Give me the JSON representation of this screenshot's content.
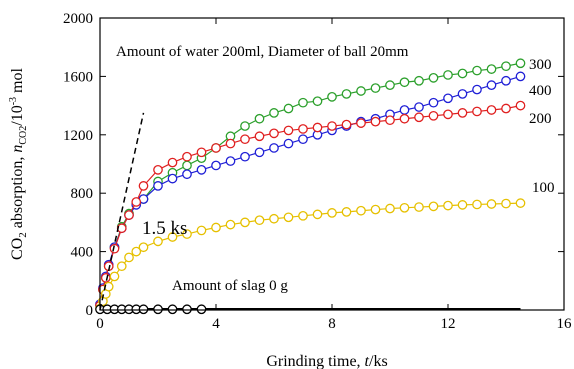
{
  "chart_data": {
    "type": "line",
    "xlabel_text": "Grinding time, ",
    "xlabel_var": "t",
    "xlabel_unit": "/ks",
    "ylabel_pre": "CO",
    "ylabel_sub": "2",
    "ylabel_mid": " absorption, ",
    "ylabel_var": "n",
    "ylabel_var_sub": "CO2",
    "ylabel_unit_pre": "/10",
    "ylabel_unit_sup": "-3",
    "ylabel_unit_post": " mol",
    "xlim": [
      0,
      16
    ],
    "ylim": [
      0,
      2000
    ],
    "xticks": [
      "0",
      "4",
      "8",
      "12",
      "16"
    ],
    "yticks": [
      "0",
      "400",
      "800",
      "1200",
      "1600",
      "2000"
    ],
    "grid": false,
    "annotations": {
      "top": "Amount of water 200ml, Diameter of ball 20mm",
      "time_marker": "1.5 ks",
      "slag_zero": "Amount of slag 0 g"
    },
    "tangent_line": {
      "x": [
        0,
        1.5
      ],
      "y": [
        0,
        1350
      ]
    },
    "series": [
      {
        "label": "300",
        "color": "#2ca02c",
        "x": [
          0,
          0.1,
          0.2,
          0.3,
          0.5,
          0.75,
          1.0,
          1.25,
          1.5,
          2.0,
          2.5,
          3.0,
          3.5,
          4.0,
          4.5,
          5.0,
          5.5,
          6.0,
          6.5,
          7.0,
          7.5,
          8.0,
          8.5,
          9.0,
          9.5,
          10.0,
          10.5,
          11.0,
          11.5,
          12.0,
          12.5,
          13.0,
          13.5,
          14.0,
          14.5
        ],
        "y": [
          30,
          140,
          220,
          300,
          430,
          570,
          660,
          730,
          760,
          880,
          940,
          990,
          1040,
          1110,
          1190,
          1260,
          1310,
          1350,
          1380,
          1420,
          1430,
          1460,
          1480,
          1500,
          1520,
          1540,
          1560,
          1570,
          1590,
          1610,
          1620,
          1640,
          1650,
          1670,
          1690
        ]
      },
      {
        "label": "400",
        "color": "#1f1fd6",
        "x": [
          0,
          0.1,
          0.2,
          0.3,
          0.5,
          0.75,
          1.0,
          1.25,
          1.5,
          2.0,
          2.5,
          3.0,
          3.5,
          4.0,
          4.5,
          5.0,
          5.5,
          6.0,
          6.5,
          7.0,
          7.5,
          8.0,
          8.5,
          9.0,
          9.5,
          10.0,
          10.5,
          11.0,
          11.5,
          12.0,
          12.5,
          13.0,
          13.5,
          14.0,
          14.5
        ],
        "y": [
          40,
          150,
          230,
          310,
          430,
          560,
          650,
          720,
          760,
          850,
          900,
          930,
          960,
          990,
          1020,
          1050,
          1080,
          1110,
          1140,
          1170,
          1200,
          1230,
          1260,
          1290,
          1310,
          1340,
          1370,
          1390,
          1420,
          1450,
          1480,
          1510,
          1540,
          1570,
          1600
        ]
      },
      {
        "label": "200",
        "color": "#e02020",
        "x": [
          0,
          0.1,
          0.2,
          0.3,
          0.5,
          0.75,
          1.0,
          1.25,
          1.5,
          2.0,
          2.5,
          3.0,
          3.5,
          4.0,
          4.5,
          5.0,
          5.5,
          6.0,
          6.5,
          7.0,
          7.5,
          8.0,
          8.5,
          9.0,
          9.5,
          10.0,
          10.5,
          11.0,
          11.5,
          12.0,
          12.5,
          13.0,
          13.5,
          14.0,
          14.5
        ],
        "y": [
          30,
          140,
          220,
          300,
          420,
          560,
          650,
          740,
          850,
          960,
          1010,
          1050,
          1080,
          1110,
          1140,
          1170,
          1190,
          1210,
          1230,
          1240,
          1250,
          1260,
          1270,
          1280,
          1290,
          1300,
          1310,
          1320,
          1330,
          1340,
          1350,
          1360,
          1370,
          1380,
          1400
        ]
      },
      {
        "label": "100",
        "color": "#e6c000",
        "x": [
          0,
          0.1,
          0.2,
          0.3,
          0.5,
          0.75,
          1.0,
          1.25,
          1.5,
          2.0,
          2.5,
          3.0,
          3.5,
          4.0,
          4.5,
          5.0,
          5.5,
          6.0,
          6.5,
          7.0,
          7.5,
          8.0,
          8.5,
          9.0,
          9.5,
          10.0,
          10.5,
          11.0,
          11.5,
          12.0,
          12.5,
          13.0,
          13.5,
          14.0,
          14.5
        ],
        "y": [
          10,
          60,
          110,
          160,
          230,
          300,
          360,
          400,
          430,
          470,
          500,
          520,
          545,
          565,
          585,
          600,
          615,
          625,
          635,
          645,
          655,
          665,
          672,
          680,
          688,
          695,
          700,
          705,
          710,
          715,
          720,
          723,
          726,
          729,
          732
        ]
      },
      {
        "label": "",
        "color": "#000000",
        "x": [
          0,
          0.25,
          0.5,
          0.75,
          1.0,
          1.25,
          1.5,
          2.0,
          2.5,
          3.0,
          3.5,
          4.0,
          6.0,
          8.0,
          10.0,
          12.0,
          14.5
        ],
        "y": [
          5,
          5,
          5,
          5,
          5,
          5,
          5,
          5,
          5,
          5,
          5,
          5,
          5,
          5,
          5,
          5,
          5
        ],
        "marker_count": 11
      }
    ]
  }
}
